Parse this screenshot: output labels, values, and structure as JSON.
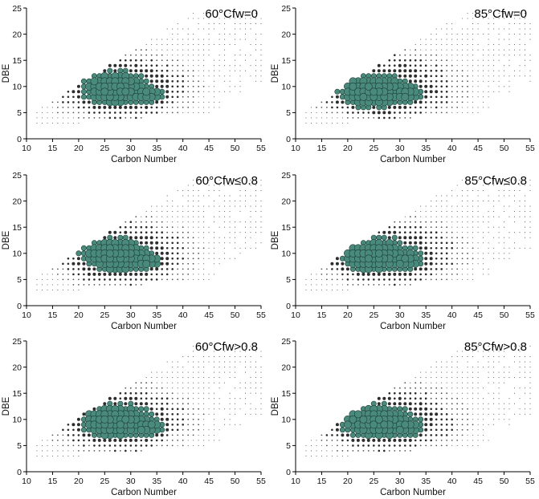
{
  "chart_data": [
    {
      "type": "scatter",
      "title": "60°Cfw=0",
      "xlabel": "Carbon Number",
      "ylabel": "DBE",
      "xlim": [
        10,
        55
      ],
      "ylim": [
        0,
        25
      ],
      "xticks": [
        "10",
        "15",
        "20",
        "25",
        "30",
        "35",
        "40",
        "45",
        "50",
        "55"
      ],
      "yticks": [
        "0",
        "5",
        "10",
        "15",
        "20",
        "25"
      ],
      "marker_color": "#4a8a7c",
      "cluster": {
        "c1": [
          27,
          9.5
        ],
        "c2": [
          33,
          8.5
        ],
        "variant": "60"
      }
    },
    {
      "type": "scatter",
      "title": "85°Cfw=0",
      "xlabel": "Carbon Number",
      "ylabel": "DBE",
      "xlim": [
        10,
        55
      ],
      "ylim": [
        0,
        25
      ],
      "xticks": [
        "10",
        "15",
        "20",
        "25",
        "30",
        "35",
        "40",
        "45",
        "50",
        "55"
      ],
      "yticks": [
        "0",
        "5",
        "10",
        "15",
        "20",
        "25"
      ],
      "marker_color": "#4a8a7c",
      "cluster": {
        "c1": [
          24.5,
          9
        ],
        "c2": [
          31,
          8.5
        ],
        "variant": "85"
      }
    },
    {
      "type": "scatter",
      "title": "60°Cfw≤0.8",
      "xlabel": "Carbon Number",
      "ylabel": "DBE",
      "xlim": [
        10,
        55
      ],
      "ylim": [
        0,
        25
      ],
      "xticks": [
        "10",
        "15",
        "20",
        "25",
        "30",
        "35",
        "40",
        "45",
        "50",
        "55"
      ],
      "yticks": [
        "0",
        "5",
        "10",
        "15",
        "20",
        "25"
      ],
      "marker_color": "#4a8a7c",
      "cluster": {
        "c1": [
          27,
          9.5
        ],
        "c2": [
          33,
          8.5
        ],
        "variant": "60"
      }
    },
    {
      "type": "scatter",
      "title": "85°Cfw≤0.8",
      "xlabel": "Carbon Number",
      "ylabel": "DBE",
      "xlim": [
        10,
        55
      ],
      "ylim": [
        0,
        25
      ],
      "xticks": [
        "10",
        "15",
        "20",
        "25",
        "30",
        "35",
        "40",
        "45",
        "50",
        "55"
      ],
      "yticks": [
        "0",
        "5",
        "10",
        "15",
        "20",
        "25"
      ],
      "marker_color": "#4a8a7c",
      "cluster": {
        "c1": [
          25,
          9.5
        ],
        "c2": [
          31,
          8.5
        ],
        "variant": "85"
      }
    },
    {
      "type": "scatter",
      "title": "60°Cfw>0.8",
      "xlabel": "Carbon Number",
      "ylabel": "DBE",
      "xlim": [
        10,
        55
      ],
      "ylim": [
        0,
        25
      ],
      "xticks": [
        "10",
        "15",
        "20",
        "25",
        "30",
        "35",
        "40",
        "45",
        "50",
        "55"
      ],
      "yticks": [
        "0",
        "5",
        "10",
        "15",
        "20",
        "25"
      ],
      "marker_color": "#4a8a7c",
      "cluster": {
        "c1": [
          27,
          9.5
        ],
        "c2": [
          33,
          8.5
        ],
        "variant": "60"
      }
    },
    {
      "type": "scatter",
      "title": "85°Cfw>0.8",
      "xlabel": "Carbon Number",
      "ylabel": "DBE",
      "xlim": [
        10,
        55
      ],
      "ylim": [
        0,
        25
      ],
      "xticks": [
        "10",
        "15",
        "20",
        "25",
        "30",
        "35",
        "40",
        "45",
        "50",
        "55"
      ],
      "yticks": [
        "0",
        "5",
        "10",
        "15",
        "20",
        "25"
      ],
      "marker_color": "#4a8a7c",
      "cluster": {
        "c1": [
          25,
          9.5
        ],
        "c2": [
          31,
          8.5
        ],
        "variant": "85"
      }
    }
  ]
}
